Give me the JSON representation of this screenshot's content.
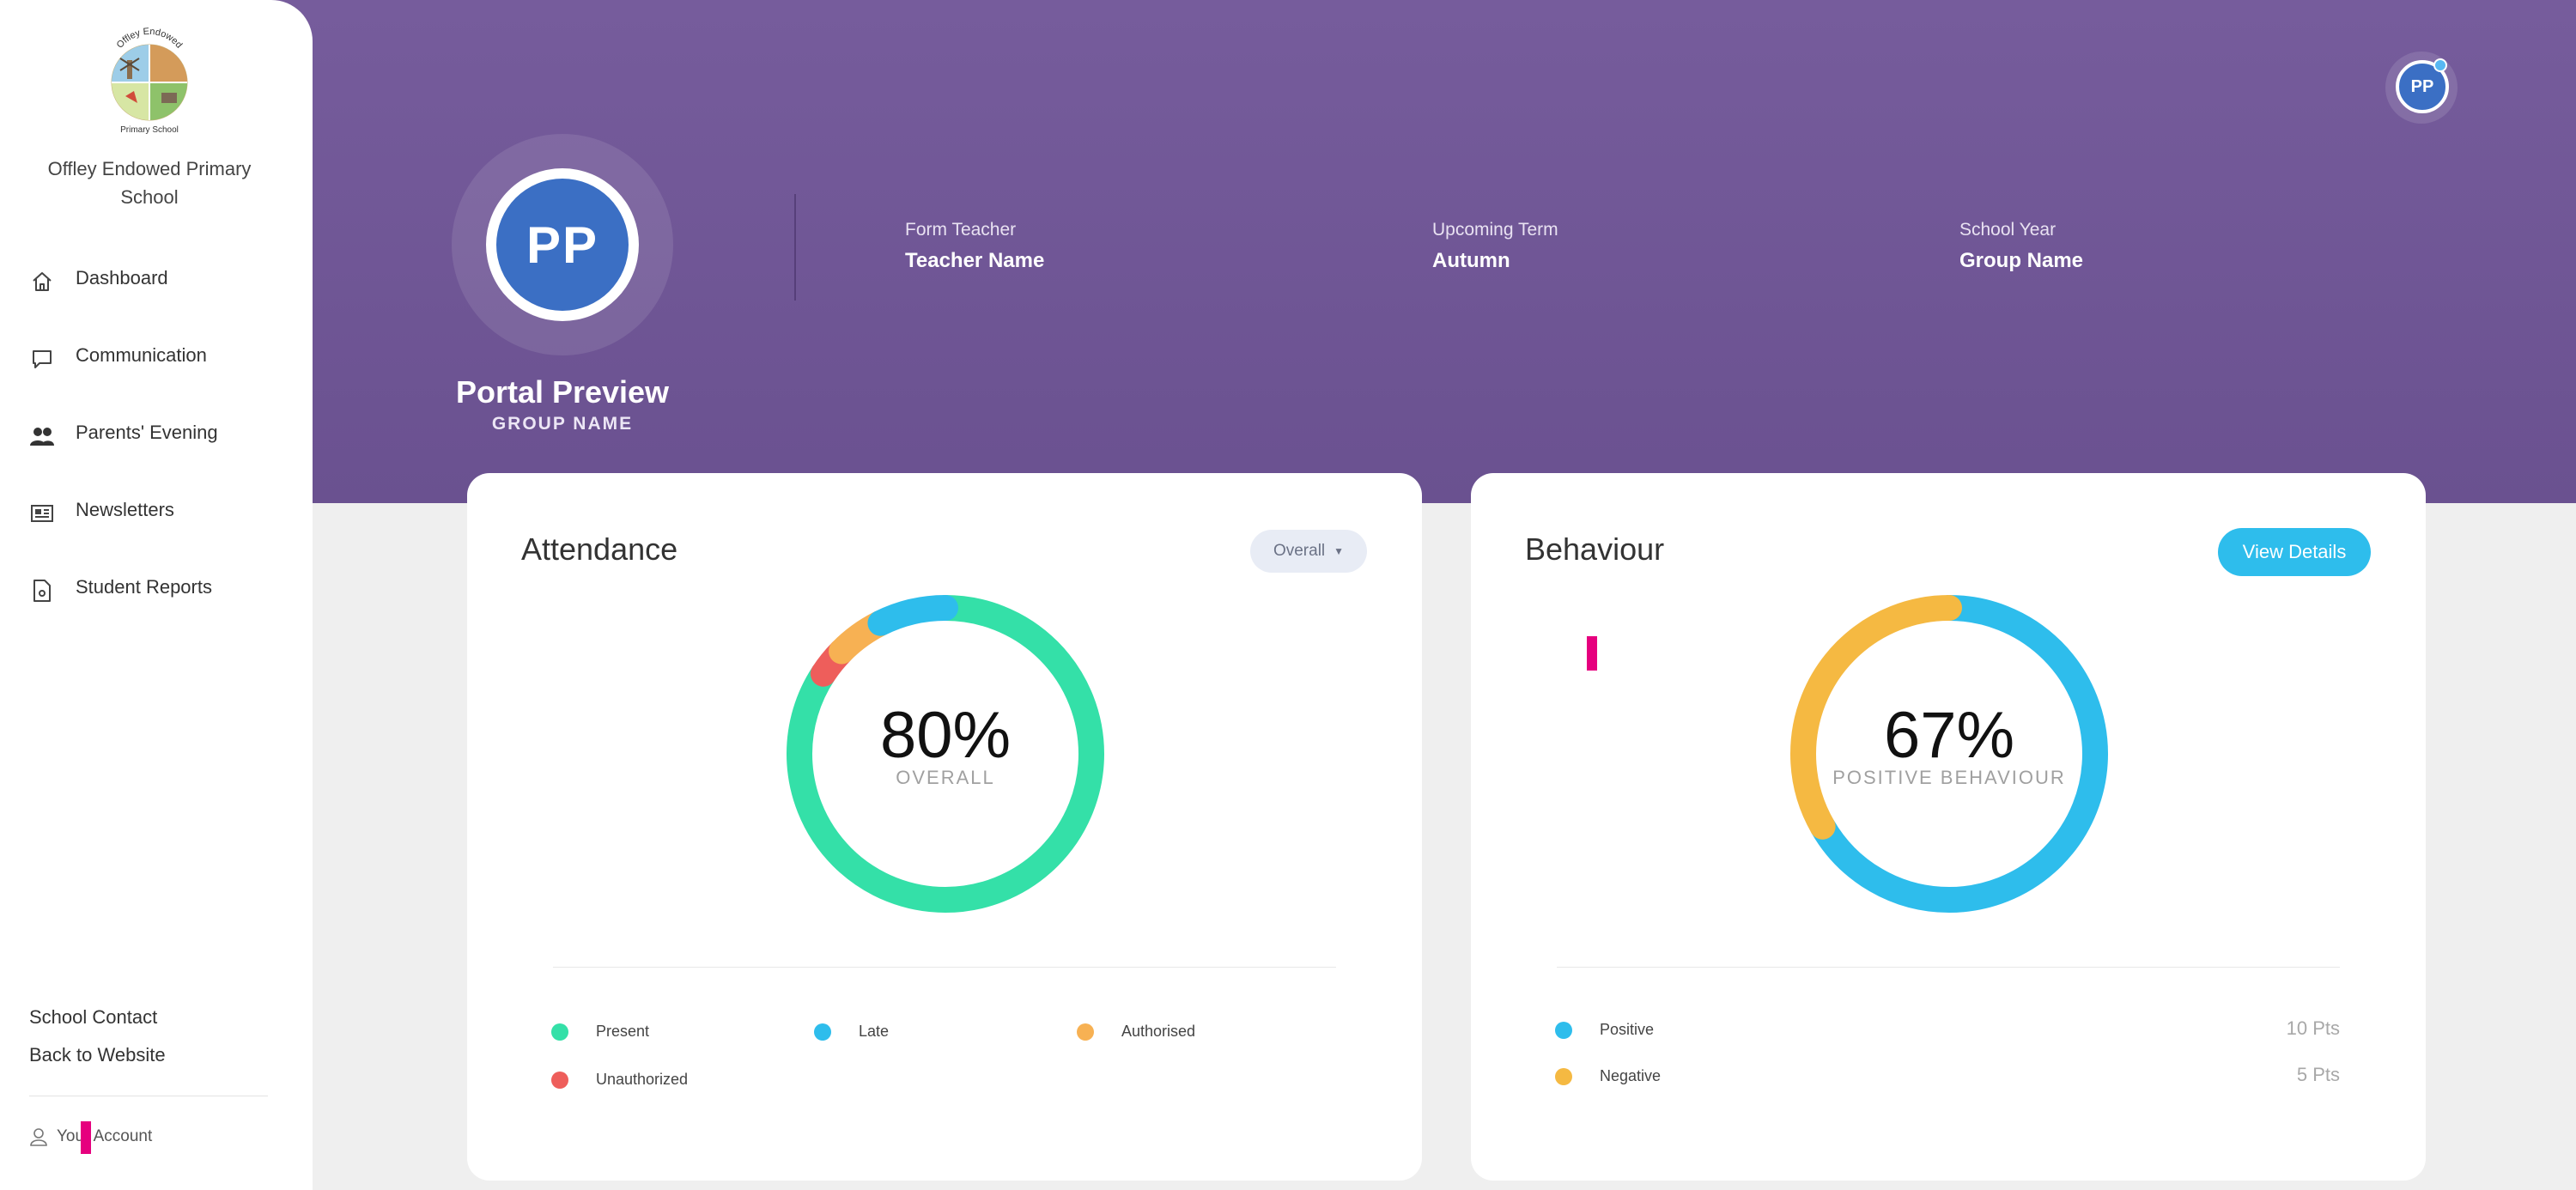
{
  "school": {
    "name": "Offley Endowed Primary School",
    "logo_text_top": "Offley Endowed",
    "logo_text_bottom": "Primary School"
  },
  "nav": [
    {
      "label": "Dashboard",
      "icon": "home-icon"
    },
    {
      "label": "Communication",
      "icon": "chat-icon"
    },
    {
      "label": "Parents' Evening",
      "icon": "people-icon"
    },
    {
      "label": "Newsletters",
      "icon": "newspaper-icon"
    },
    {
      "label": "Student Reports",
      "icon": "report-icon"
    }
  ],
  "bottom_links": {
    "contact": "School Contact",
    "website": "Back to Website"
  },
  "account": {
    "label": "Your Account",
    "icon": "user-icon"
  },
  "profile": {
    "initials": "PP",
    "name": "Portal Preview",
    "group": "GROUP NAME"
  },
  "info": {
    "form_teacher_label": "Form Teacher",
    "form_teacher_value": "Teacher Name",
    "term_label": "Upcoming Term",
    "term_value": "Autumn",
    "year_label": "School Year",
    "year_value": "Group Name"
  },
  "top_avatar": {
    "initials": "PP"
  },
  "attendance": {
    "title": "Attendance",
    "filter": "Overall",
    "percent": "80%",
    "caption": "OVERALL",
    "segments": [
      {
        "name": "Present",
        "value": 80,
        "color": "#34e0a8"
      },
      {
        "name": "Unauthorized",
        "value": 3,
        "color": "#ee5e5b"
      },
      {
        "name": "Authorised",
        "value": 5,
        "color": "#f7b153"
      },
      {
        "name": "Late",
        "value": 7,
        "color": "#2ebdec"
      }
    ],
    "legend": [
      {
        "label": "Present",
        "color": "#34e0a8"
      },
      {
        "label": "Late",
        "color": "#2ebdec"
      },
      {
        "label": "Authorised",
        "color": "#f7b153"
      },
      {
        "label": "Unauthorized",
        "color": "#ee5e5b"
      }
    ]
  },
  "behaviour": {
    "title": "Behaviour",
    "button": "View Details",
    "percent": "67%",
    "caption": "POSITIVE BEHAVIOUR",
    "segments": [
      {
        "name": "Positive",
        "value": 10,
        "color": "#2ebdec"
      },
      {
        "name": "Negative",
        "value": 5,
        "color": "#f5b942"
      }
    ],
    "legend": [
      {
        "label": "Positive",
        "points": "10 Pts",
        "color": "#2ebdec"
      },
      {
        "label": "Negative",
        "points": "5 Pts",
        "color": "#f5b942"
      }
    ]
  }
}
